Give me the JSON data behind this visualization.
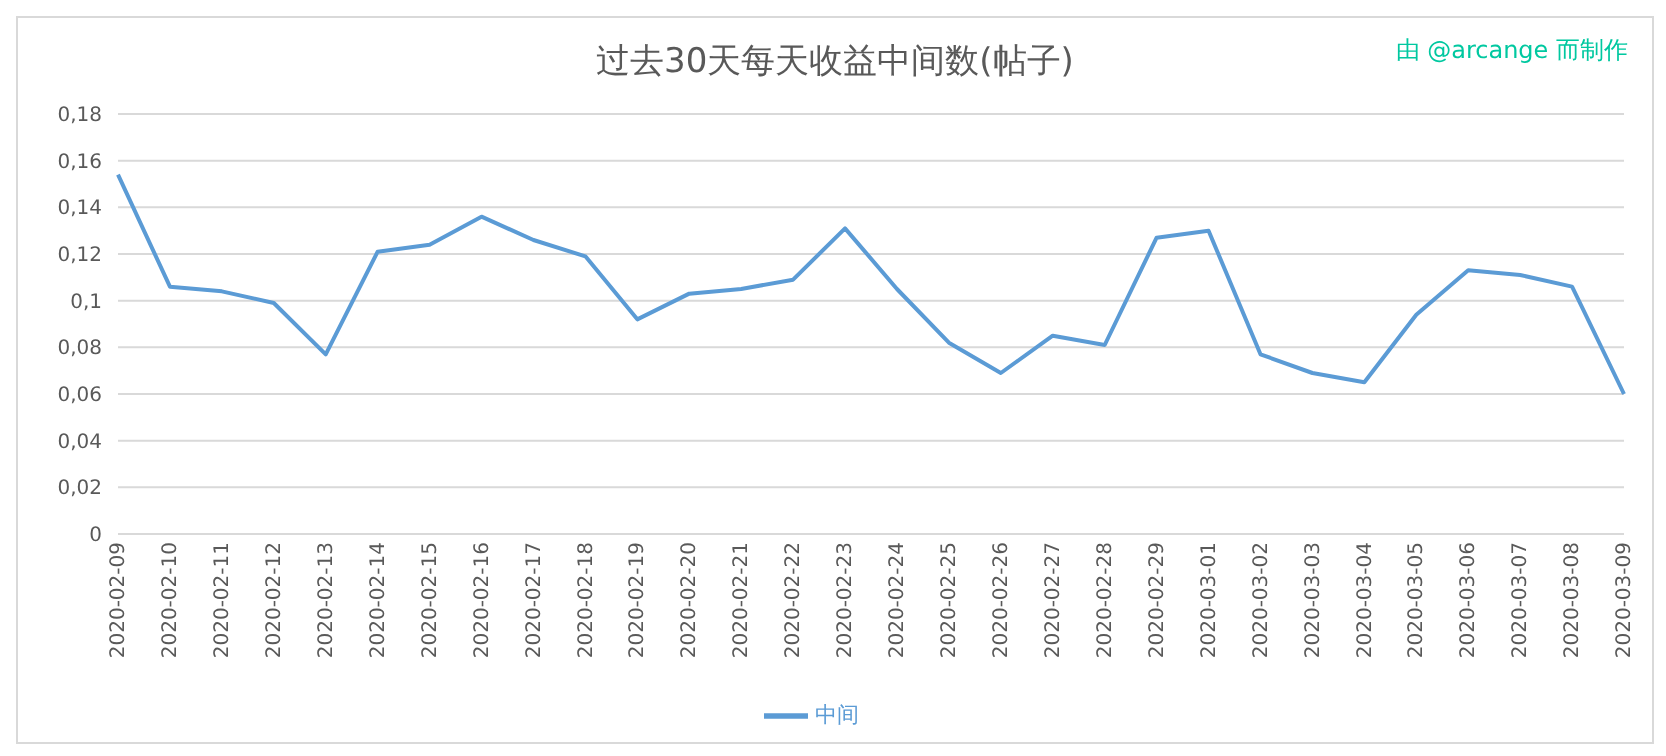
{
  "chart_data": {
    "type": "line",
    "title": "过去30天每天收益中间数(帖子)",
    "annotations": [
      "由 @arcange 而制作"
    ],
    "categories": [
      "2020-02-09",
      "2020-02-10",
      "2020-02-11",
      "2020-02-12",
      "2020-02-13",
      "2020-02-14",
      "2020-02-15",
      "2020-02-16",
      "2020-02-17",
      "2020-02-18",
      "2020-02-19",
      "2020-02-20",
      "2020-02-21",
      "2020-02-22",
      "2020-02-23",
      "2020-02-24",
      "2020-02-25",
      "2020-02-26",
      "2020-02-27",
      "2020-02-28",
      "2020-02-29",
      "2020-03-01",
      "2020-03-02",
      "2020-03-03",
      "2020-03-04",
      "2020-03-05",
      "2020-03-06",
      "2020-03-07",
      "2020-03-08",
      "2020-03-09"
    ],
    "series": [
      {
        "name": "中间",
        "color": "#5b9bd5",
        "values": [
          0.154,
          0.106,
          0.104,
          0.099,
          0.077,
          0.121,
          0.124,
          0.136,
          0.126,
          0.119,
          0.092,
          0.103,
          0.105,
          0.109,
          0.131,
          0.105,
          0.082,
          0.069,
          0.085,
          0.081,
          0.127,
          0.13,
          0.077,
          0.069,
          0.065,
          0.094,
          0.113,
          0.111,
          0.106,
          0.06
        ]
      }
    ],
    "ylim": [
      0,
      0.18
    ],
    "yticks": [
      0,
      {
        "value": 0.02,
        "label": "0,02"
      },
      {
        "value": 0.04,
        "label": "0,04"
      },
      {
        "value": 0.06,
        "label": "0,06"
      },
      {
        "value": 0.08,
        "label": "0,08"
      },
      {
        "value": 0.1,
        "label": "0,1"
      },
      {
        "value": 0.12,
        "label": "0,12"
      },
      {
        "value": 0.14,
        "label": "0,14"
      },
      {
        "value": 0.16,
        "label": "0,16"
      },
      {
        "value": 0.18,
        "label": "0,18"
      }
    ],
    "grid": "y",
    "legend": "bottom",
    "marker": "none",
    "line_style": "solid"
  }
}
